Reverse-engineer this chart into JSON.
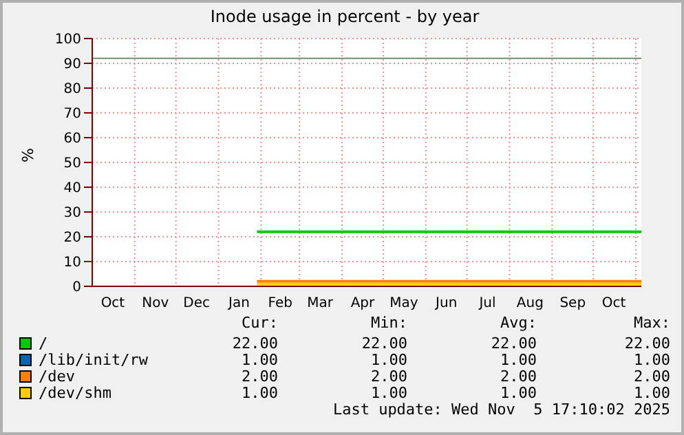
{
  "chart_data": {
    "type": "line",
    "title": "Inode usage in percent - by year",
    "ylabel": "%",
    "xlim": [
      "2024-10-01",
      "2025-11-05"
    ],
    "xticks": [
      {
        "value": "2024-10-16",
        "label": "Oct"
      },
      {
        "value": "2024-11-01",
        "label": null
      },
      {
        "value": "2024-11-16",
        "label": "Nov"
      },
      {
        "value": "2024-12-01",
        "label": null
      },
      {
        "value": "2024-12-16",
        "label": "Dec"
      },
      {
        "value": "2025-01-01",
        "label": null
      },
      {
        "value": "2025-01-16",
        "label": "Jan"
      },
      {
        "value": "2025-02-01",
        "label": null
      },
      {
        "value": "2025-02-15",
        "label": "Feb"
      },
      {
        "value": "2025-03-01",
        "label": null
      },
      {
        "value": "2025-03-16",
        "label": "Mar"
      },
      {
        "value": "2025-04-01",
        "label": null
      },
      {
        "value": "2025-04-16",
        "label": "Apr"
      },
      {
        "value": "2025-05-01",
        "label": null
      },
      {
        "value": "2025-05-16",
        "label": "May"
      },
      {
        "value": "2025-06-01",
        "label": null
      },
      {
        "value": "2025-06-16",
        "label": "Jun"
      },
      {
        "value": "2025-07-01",
        "label": null
      },
      {
        "value": "2025-07-16",
        "label": "Jul"
      },
      {
        "value": "2025-08-01",
        "label": null
      },
      {
        "value": "2025-08-16",
        "label": "Aug"
      },
      {
        "value": "2025-09-01",
        "label": null
      },
      {
        "value": "2025-09-16",
        "label": "Sep"
      },
      {
        "value": "2025-10-01",
        "label": null
      },
      {
        "value": "2025-10-16",
        "label": "Oct"
      },
      {
        "value": "2025-11-01",
        "label": null
      }
    ],
    "ylim": [
      0,
      100
    ],
    "yticks": [
      0,
      10,
      20,
      30,
      40,
      50,
      60,
      70,
      80,
      90,
      100
    ],
    "grid": true,
    "legend": "bottom",
    "marker": "none",
    "line_style": "solid",
    "ref_lines": [
      {
        "axis": "y",
        "value": 92,
        "color": "#6e8e6e"
      }
    ],
    "series": [
      {
        "name": "/",
        "color": "#00cc00",
        "x": [
          "2025-01-29",
          "2025-11-05"
        ],
        "values": [
          22,
          22
        ]
      },
      {
        "name": "/lib/init/rw",
        "color": "#0066b3"
      },
      {
        "name": "/dev",
        "color": "#ff8000",
        "x": [
          "2025-01-29",
          "2025-11-05"
        ],
        "values": [
          2,
          2
        ]
      },
      {
        "name": "/dev/shm",
        "color": "#ffcc00",
        "x": [
          "2025-01-29",
          "2025-11-05"
        ],
        "values": [
          1,
          1
        ]
      }
    ],
    "annotations": [
      "Cur:",
      "Min:",
      "Avg:",
      "Max:",
      "22.00",
      "22.00",
      "22.00",
      "22.00",
      "1.00",
      "1.00",
      "1.00",
      "1.00",
      "2.00",
      "2.00",
      "2.00",
      "2.00",
      "1.00",
      "1.00",
      "1.00",
      "1.00",
      "Last update: Wed Nov  5 17:10:02 2025"
    ]
  }
}
